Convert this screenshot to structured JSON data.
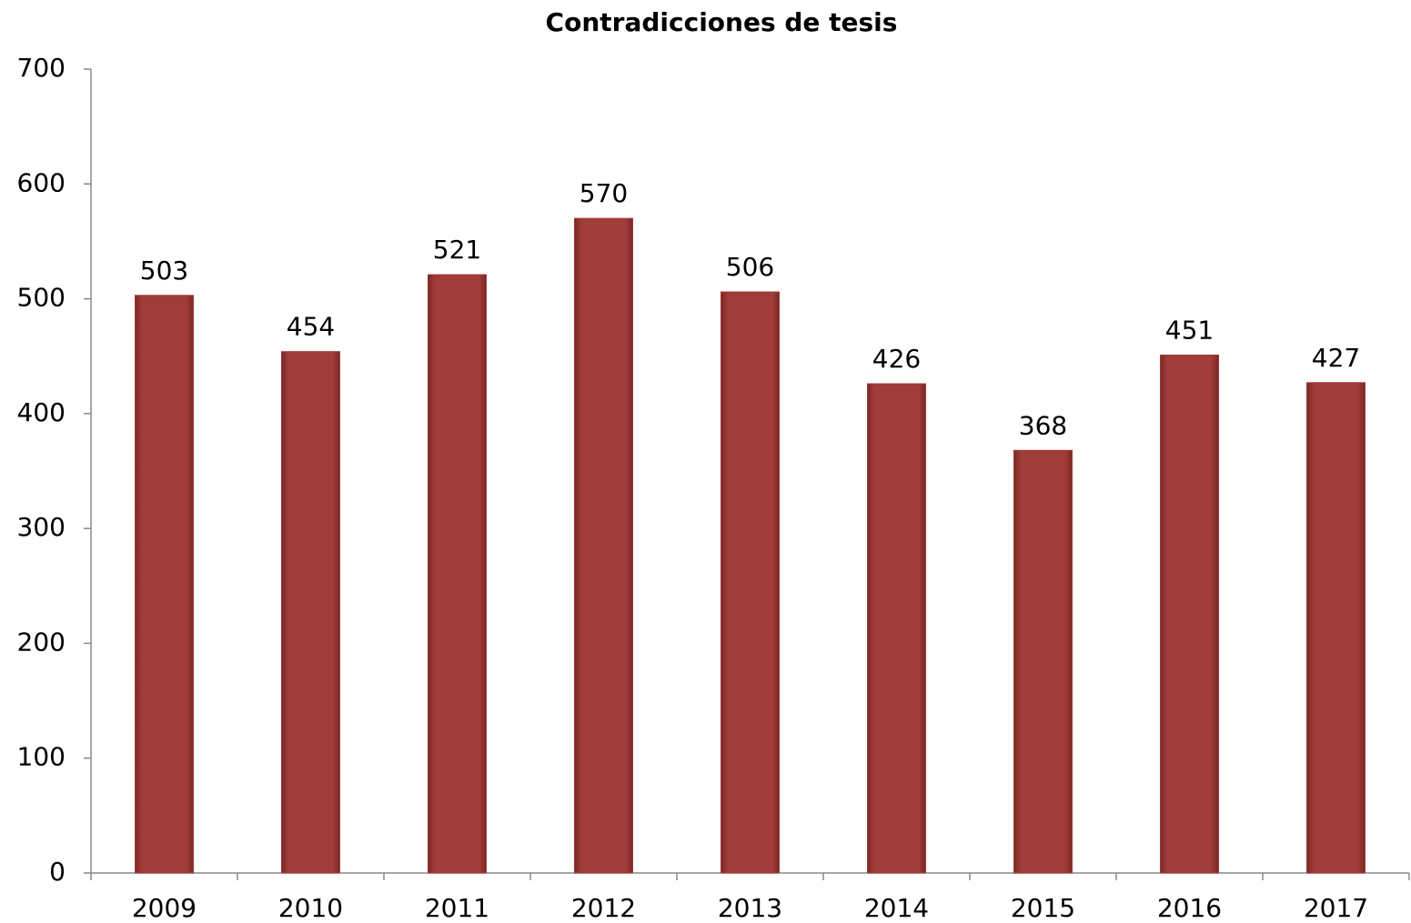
{
  "chart_data": {
    "type": "bar",
    "title": "Contradicciones de tesis",
    "categories": [
      "2009",
      "2010",
      "2011",
      "2012",
      "2013",
      "2014",
      "2015",
      "2016",
      "2017"
    ],
    "values": [
      503,
      454,
      521,
      570,
      506,
      426,
      368,
      451,
      427
    ],
    "color": "#9e3a38",
    "ylim": [
      0,
      700
    ],
    "yticks": [
      0,
      100,
      200,
      300,
      400,
      500,
      600,
      700
    ],
    "grid": false
  }
}
